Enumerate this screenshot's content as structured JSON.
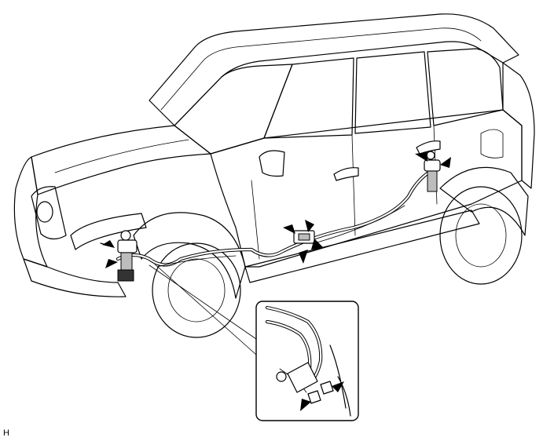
{
  "figure": {
    "corner_label": "H",
    "arrow_color": "#000000",
    "line_color": "#000000",
    "callout_icon": "arrow-icon"
  }
}
